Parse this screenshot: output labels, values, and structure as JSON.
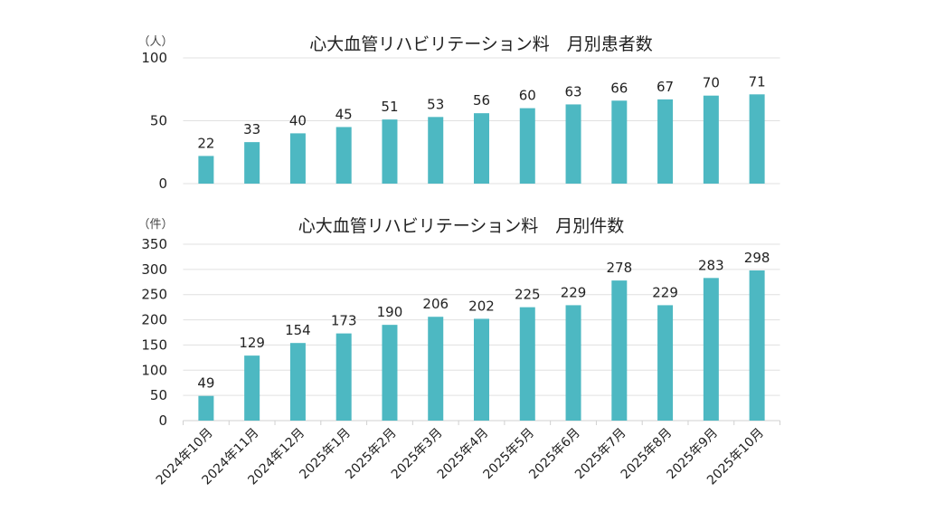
{
  "chart_data": [
    {
      "type": "bar",
      "title": "心大血管リハビリテーション料　月別患者数",
      "unit_label": "（人）",
      "categories": [
        "2024年10月",
        "2024年11月",
        "2024年12月",
        "2025年1月",
        "2025年2月",
        "2025年3月",
        "2025年4月",
        "2025年5月",
        "2025年6月",
        "2025年7月",
        "2025年8月",
        "2025年9月",
        "2025年10月"
      ],
      "values": [
        22,
        33,
        40,
        45,
        51,
        53,
        56,
        60,
        63,
        66,
        67,
        70,
        71
      ],
      "ylim": [
        0,
        100
      ],
      "yticks": [
        0,
        50,
        100
      ],
      "grid": true,
      "bar_color": "#4db8c2"
    },
    {
      "type": "bar",
      "title": "心大血管リハビリテーション料　月別件数",
      "unit_label": "（件）",
      "categories": [
        "2024年10月",
        "2024年11月",
        "2024年12月",
        "2025年1月",
        "2025年2月",
        "2025年3月",
        "2025年4月",
        "2025年5月",
        "2025年6月",
        "2025年7月",
        "2025年8月",
        "2025年9月",
        "2025年10月"
      ],
      "values": [
        49,
        129,
        154,
        173,
        190,
        206,
        202,
        225,
        229,
        278,
        229,
        283,
        298
      ],
      "ylim": [
        0,
        350
      ],
      "yticks": [
        0,
        50,
        100,
        150,
        200,
        250,
        300,
        350
      ],
      "grid": true,
      "bar_color": "#4db8c2"
    }
  ]
}
